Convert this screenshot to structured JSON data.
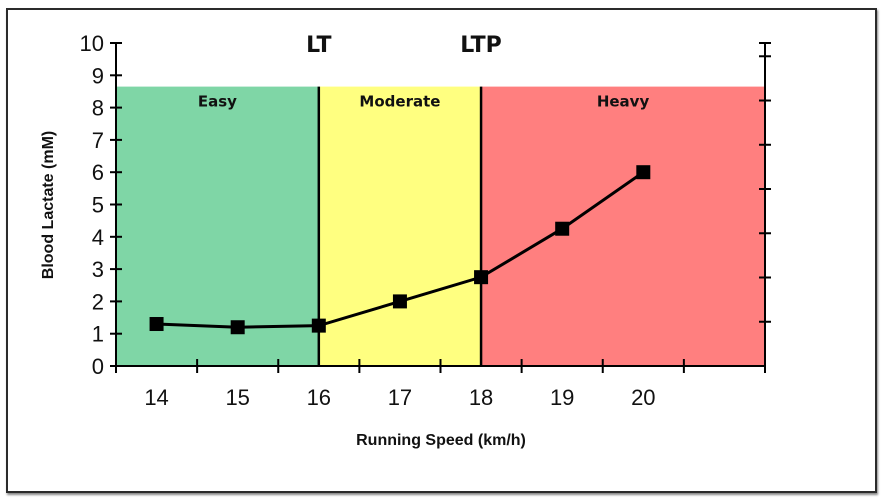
{
  "chart_data": {
    "type": "line",
    "title": "",
    "xlabel": "Running Speed (km/h)",
    "ylabel": "Blood Lactate (mM)",
    "categories": [
      "14",
      "15",
      "16",
      "17",
      "18",
      "19",
      "20"
    ],
    "x": [
      14,
      15,
      16,
      17,
      18,
      19,
      20
    ],
    "series": [
      {
        "name": "Blood Lactate",
        "values": [
          1.3,
          1.2,
          1.25,
          2.0,
          2.75,
          4.25,
          6.0
        ],
        "color": "#000000",
        "marker": "square"
      }
    ],
    "xlim": [
      13.5,
      21.5
    ],
    "ylim": [
      0,
      10
    ],
    "yticks": [
      0,
      1,
      2,
      3,
      4,
      5,
      6,
      7,
      8,
      9,
      10
    ],
    "grid": false,
    "zones": [
      {
        "label": "Easy",
        "from": 13.5,
        "to": 16,
        "top": 8.65,
        "color": "#7fd6a6"
      },
      {
        "label": "Moderate",
        "from": 16,
        "to": 18,
        "top": 8.65,
        "color": "#ffff80"
      },
      {
        "label": "Heavy",
        "from": 18,
        "to": 21.5,
        "top": 8.65,
        "color": "#ff7f7f"
      }
    ],
    "thresholds": [
      {
        "label": "LT",
        "x": 16
      },
      {
        "label": "LTP",
        "x": 18
      }
    ],
    "legend": "none"
  }
}
